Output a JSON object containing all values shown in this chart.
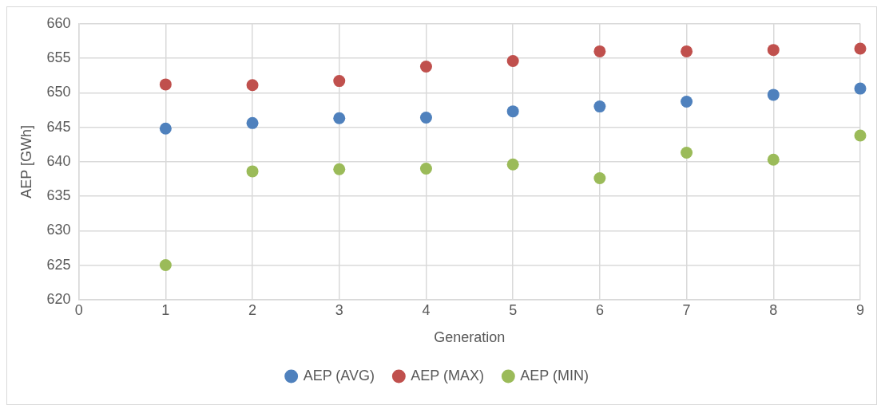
{
  "chart_data": {
    "type": "scatter",
    "xlabel": "Generation",
    "ylabel": "AEP [GWh]",
    "x": [
      1,
      2,
      3,
      4,
      5,
      6,
      7,
      8,
      9
    ],
    "series": [
      {
        "name": "AEP (AVG)",
        "color": "#4f81bd",
        "values": [
          644.8,
          645.6,
          646.3,
          646.4,
          647.3,
          648.0,
          648.7,
          649.7,
          650.6
        ]
      },
      {
        "name": "AEP (MAX)",
        "color": "#c0504d",
        "values": [
          651.2,
          651.1,
          651.7,
          653.8,
          654.6,
          656.0,
          656.0,
          656.2,
          656.4
        ]
      },
      {
        "name": "AEP (MIN)",
        "color": "#9bbb59",
        "values": [
          625.0,
          638.6,
          638.9,
          639.0,
          639.6,
          637.6,
          641.3,
          640.3,
          643.8
        ]
      }
    ],
    "xlim": [
      0,
      9
    ],
    "xticks": [
      0,
      1,
      2,
      3,
      4,
      5,
      6,
      7,
      8,
      9
    ],
    "ylim": [
      620,
      660
    ],
    "yticks": [
      620,
      625,
      630,
      635,
      640,
      645,
      650,
      655,
      660
    ],
    "grid": true,
    "legend": "bottom",
    "marker": "circle"
  }
}
